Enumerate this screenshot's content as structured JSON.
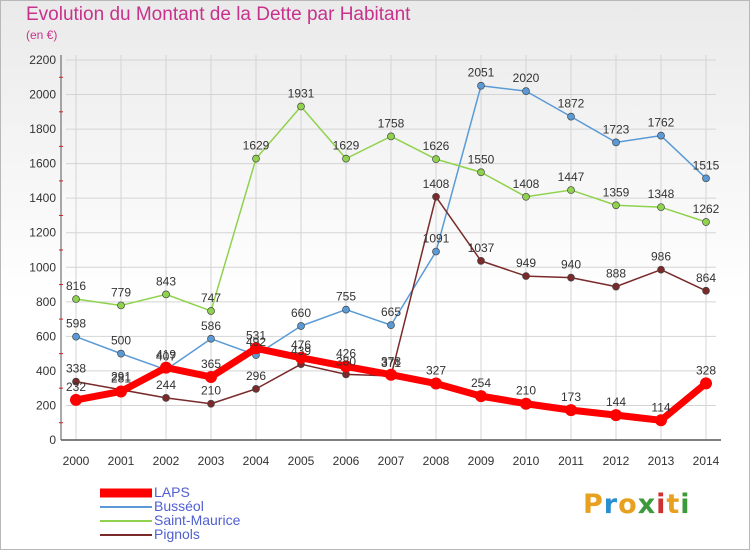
{
  "title": "Evolution du Montant de la Dette par Habitant",
  "subtitle": "(en €)",
  "logo": {
    "letters": [
      "P",
      "r",
      "o",
      "x",
      "i",
      "t",
      "i"
    ],
    "colors": [
      "#e8a020",
      "#2a8fd0",
      "#e8a020",
      "#3c9a3c",
      "#d03030",
      "#e8a020",
      "#3c9a3c"
    ]
  },
  "chart_data": {
    "type": "line",
    "x": [
      "2000",
      "2001",
      "2002",
      "2003",
      "2004",
      "2005",
      "2006",
      "2007",
      "2008",
      "2009",
      "2010",
      "2011",
      "2012",
      "2013",
      "2014"
    ],
    "ylim": [
      0,
      2200
    ],
    "yticks": [
      "0",
      "200",
      "400",
      "600",
      "800",
      "1000",
      "1200",
      "1400",
      "1600",
      "1800",
      "2000",
      "2200"
    ],
    "grid": true,
    "legend_position": "bottom-left",
    "series": [
      {
        "name": "LAPS",
        "color": "#ff0000",
        "emphasis": true,
        "values": [
          232,
          281,
          419,
          365,
          531,
          476,
          426,
          378,
          327,
          254,
          210,
          173,
          144,
          114,
          328
        ],
        "labels": [
          "232",
          "281",
          "419",
          "365",
          "531",
          "476",
          "426",
          "378",
          "327",
          "254",
          "210",
          "173",
          "144",
          "114",
          "328"
        ]
      },
      {
        "name": "Busséol",
        "color": "#5a9ad6",
        "values": [
          598,
          500,
          407,
          586,
          492,
          660,
          755,
          665,
          1091,
          2051,
          2020,
          1872,
          1723,
          1762,
          1515
        ],
        "labels": [
          "598",
          "500",
          "407",
          "586",
          "492",
          "660",
          "755",
          "665",
          "1091",
          "2051",
          "2020",
          "1872",
          "1723",
          "1762",
          "1515"
        ]
      },
      {
        "name": "Saint-Maurice",
        "color": "#8fd24d",
        "values": [
          816,
          779,
          843,
          747,
          1629,
          1931,
          1629,
          1758,
          1626,
          1550,
          1408,
          1447,
          1359,
          1348,
          1262
        ],
        "labels": [
          "816",
          "779",
          "843",
          "747",
          "1629",
          "1931",
          "1629",
          "1758",
          "1626",
          "1550",
          "1408",
          "1447",
          "1359",
          "1348",
          "1262"
        ]
      },
      {
        "name": "Pignols",
        "color": "#7a2a2a",
        "values": [
          338,
          291,
          244,
          210,
          296,
          439,
          380,
          371,
          1408,
          1037,
          949,
          940,
          888,
          986,
          864
        ],
        "labels": [
          "338",
          "291",
          "244",
          "210",
          "296",
          "439",
          "380",
          "371",
          "1408",
          "1037",
          "949",
          "940",
          "888",
          "986",
          "864"
        ]
      }
    ]
  }
}
